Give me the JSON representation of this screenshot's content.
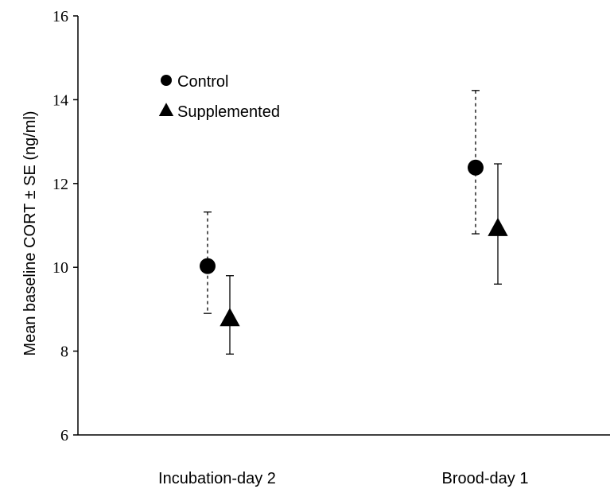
{
  "chart_data": {
    "type": "scatter",
    "title": "",
    "xlabel": "",
    "ylabel": "Mean baseline CORT ± SE (ng/ml)",
    "categories": [
      "Incubation-day 2",
      "Brood-day 1"
    ],
    "ylim": [
      6,
      16
    ],
    "yticks": [
      6,
      8,
      10,
      12,
      14,
      16
    ],
    "grid": false,
    "legend_position": "top-left",
    "series": [
      {
        "name": "Control",
        "marker": "circle",
        "errorbar_style": "dashed",
        "color": "#000000",
        "values": [
          10.03,
          12.38
        ],
        "lower": [
          8.9,
          10.8
        ],
        "upper": [
          11.32,
          14.22
        ]
      },
      {
        "name": "Supplemented",
        "marker": "triangle",
        "errorbar_style": "solid",
        "color": "#000000",
        "values": [
          8.78,
          10.93
        ],
        "lower": [
          7.93,
          9.6
        ],
        "upper": [
          9.8,
          12.47
        ]
      }
    ]
  }
}
